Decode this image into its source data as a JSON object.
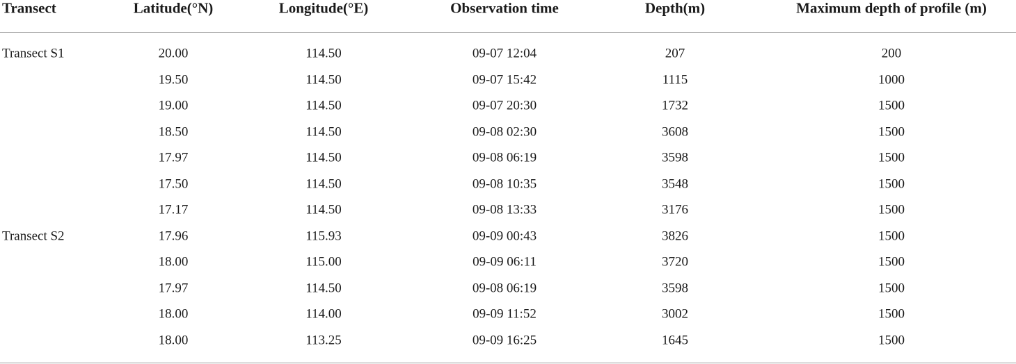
{
  "table": {
    "columns": [
      "Transect",
      "Latitude(°N)",
      "Longitude(°E)",
      "Observation time",
      "Depth(m)",
      "Maximum depth of profile (m)"
    ],
    "groups": [
      {
        "name": "Transect S1",
        "rows": [
          [
            "20.00",
            "114.50",
            "09-07 12:04",
            "207",
            "200"
          ],
          [
            "19.50",
            "114.50",
            "09-07 15:42",
            "1115",
            "1000"
          ],
          [
            "19.00",
            "114.50",
            "09-07 20:30",
            "1732",
            "1500"
          ],
          [
            "18.50",
            "114.50",
            "09-08 02:30",
            "3608",
            "1500"
          ],
          [
            "17.97",
            "114.50",
            "09-08 06:19",
            "3598",
            "1500"
          ],
          [
            "17.50",
            "114.50",
            "09-08 10:35",
            "3548",
            "1500"
          ],
          [
            "17.17",
            "114.50",
            "09-08 13:33",
            "3176",
            "1500"
          ]
        ]
      },
      {
        "name": "Transect S2",
        "rows": [
          [
            "17.96",
            "115.93",
            "09-09 00:43",
            "3826",
            "1500"
          ],
          [
            "18.00",
            "115.00",
            "09-09 06:11",
            "3720",
            "1500"
          ],
          [
            "17.97",
            "114.50",
            "09-08 06:19",
            "3598",
            "1500"
          ],
          [
            "18.00",
            "114.00",
            "09-09 11:52",
            "3002",
            "1500"
          ],
          [
            "18.00",
            "113.25",
            "09-09 16:25",
            "1645",
            "1500"
          ]
        ]
      }
    ]
  }
}
